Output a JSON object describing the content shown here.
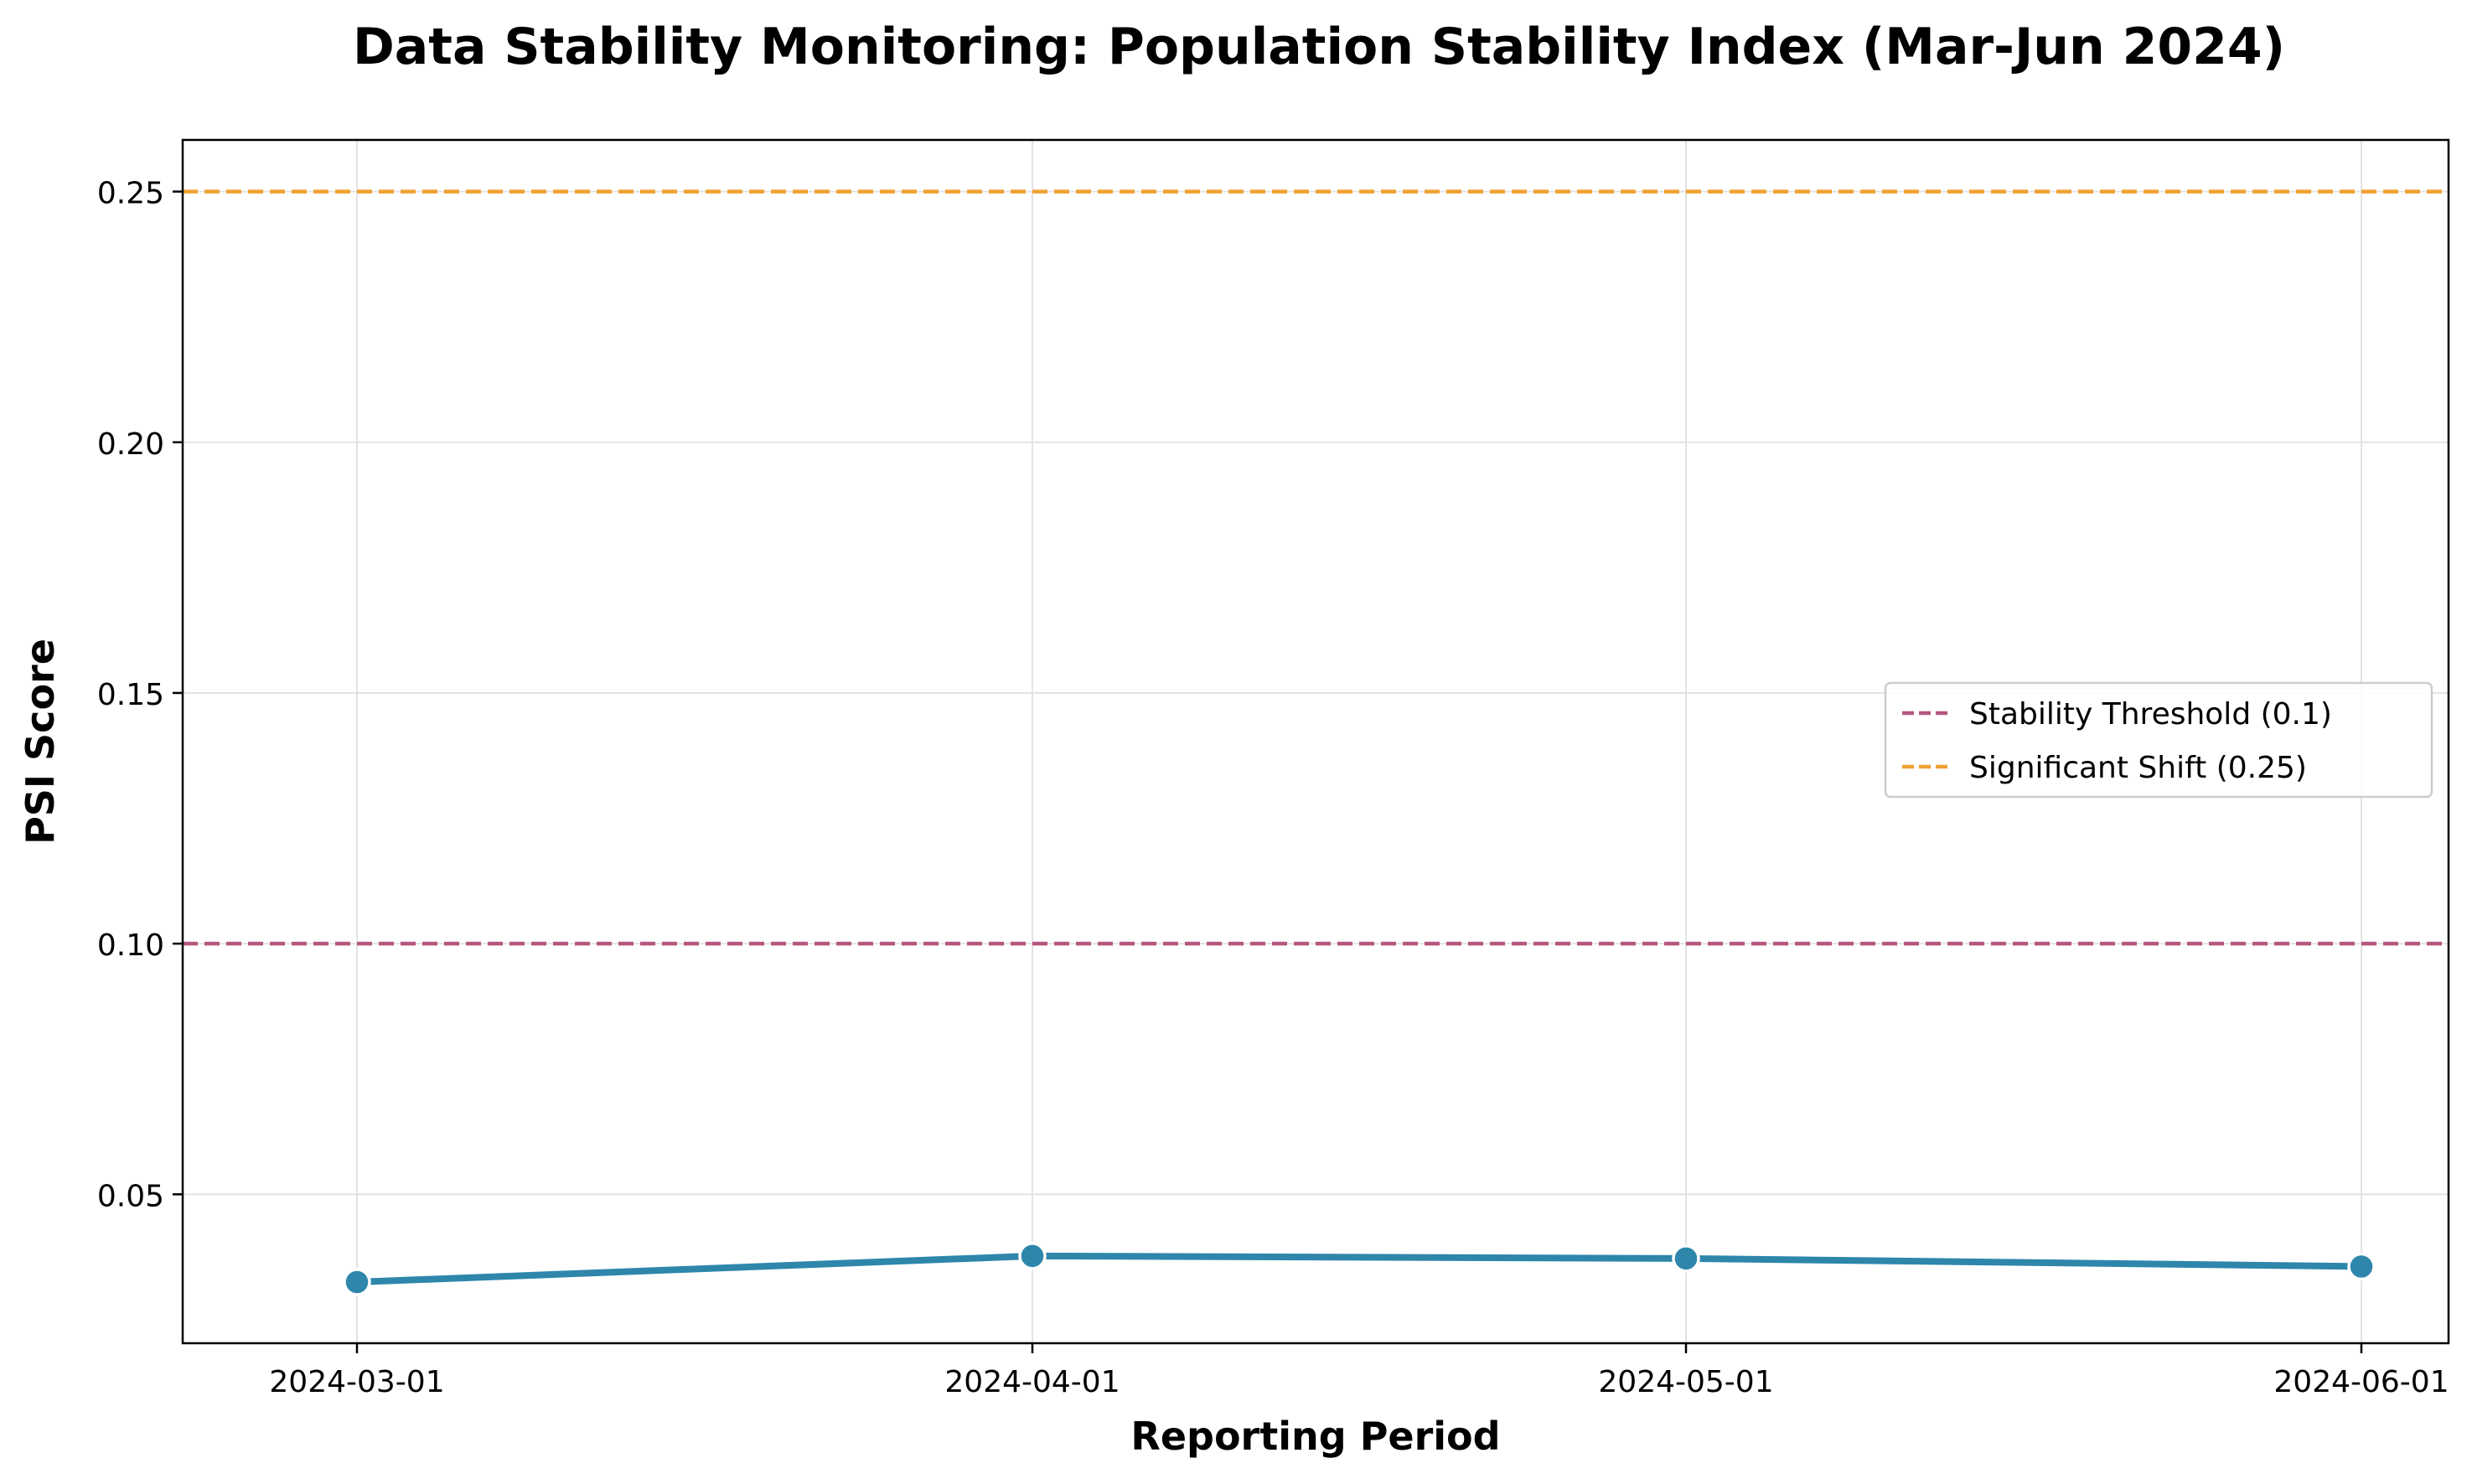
{
  "chart_data": {
    "type": "line",
    "title": "Data Stability Monitoring: Population Stability Index (Mar-Jun 2024)",
    "xlabel": "Reporting Period",
    "ylabel": "PSI Score",
    "x": [
      "2024-03-01",
      "2024-04-01",
      "2024-05-01",
      "2024-06-01"
    ],
    "series": [
      {
        "values": [
          0.0325,
          0.0377,
          0.0372,
          0.0356
        ],
        "color": "#2e86ab",
        "marker": "circle"
      }
    ],
    "reference_lines": [
      {
        "name": "Stability Threshold (0.1)",
        "y": 0.1,
        "color": "#b5577f",
        "style": "dashed"
      },
      {
        "name": "Significant Shift (0.25)",
        "y": 0.25,
        "color": "#f0a030",
        "style": "dashed"
      }
    ],
    "xlim": [
      "2024-02-22",
      "2024-06-05"
    ],
    "ylim": [
      0.0203,
      0.2603
    ],
    "yticks": [
      "0.05",
      "0.10",
      "0.15",
      "0.20",
      "0.25"
    ],
    "xticks": [
      "2024-03-01",
      "2024-04-01",
      "2024-05-01",
      "2024-06-01"
    ],
    "grid": true,
    "legend_position": "center-right"
  }
}
